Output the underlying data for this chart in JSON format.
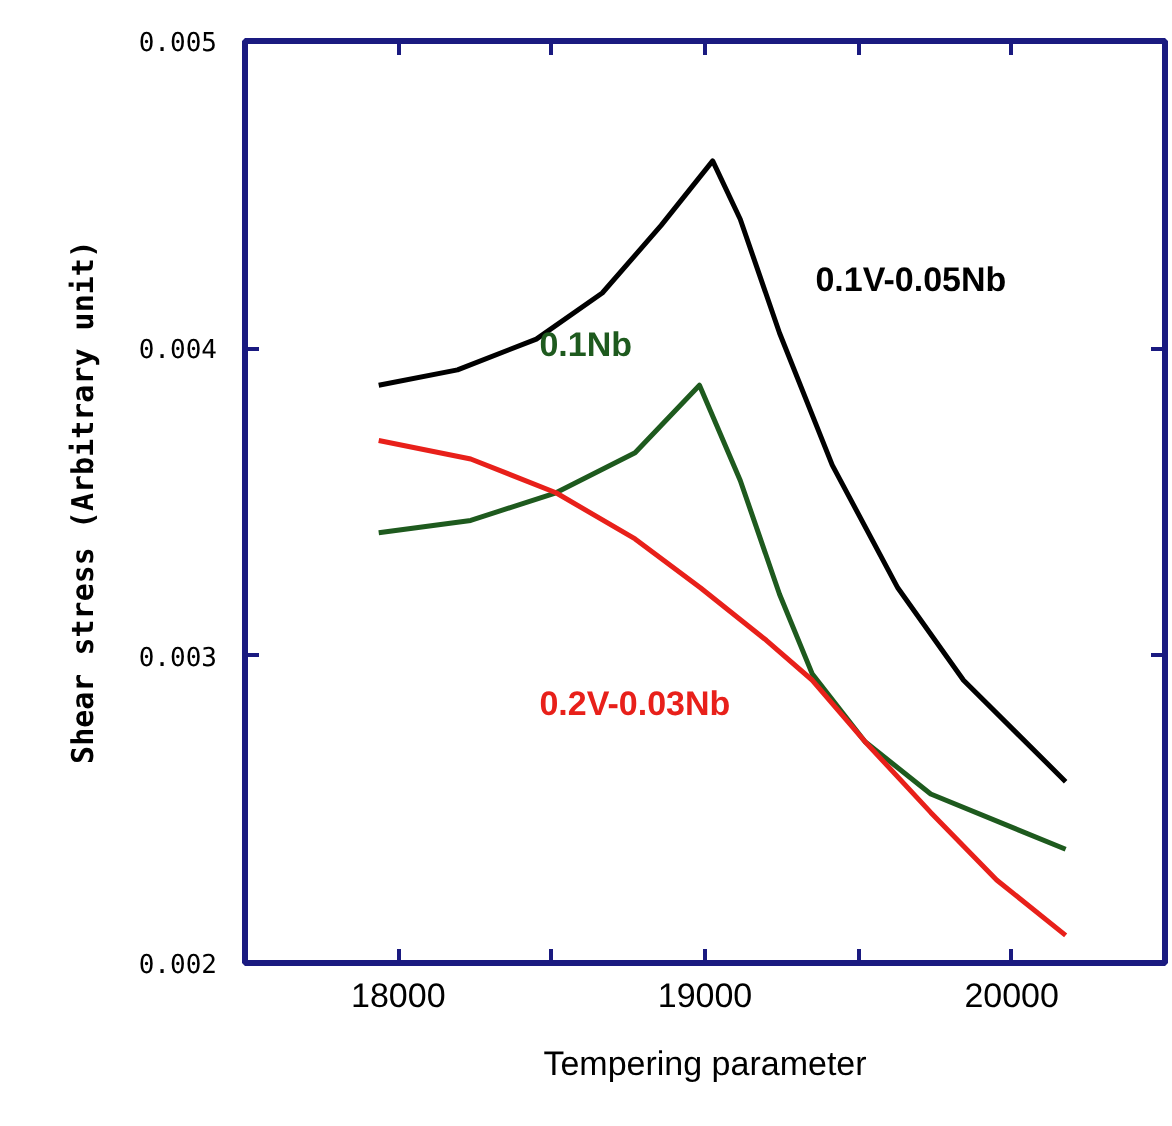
{
  "chart_data": {
    "type": "line",
    "xlabel": "Tempering parameter",
    "ylabel": "Shear stress (Arbitrary unit)",
    "xlim": [
      17500,
      20500
    ],
    "ylim": [
      0.002,
      0.005
    ],
    "xticks": [
      {
        "value": 17500,
        "label": null
      },
      18000,
      {
        "value": 18500,
        "label": null
      },
      19000,
      {
        "value": 19500,
        "label": null
      },
      20000
    ],
    "yticks": [
      0.002,
      0.003,
      0.004,
      0.005
    ],
    "grid": false,
    "legend": false,
    "marker": "none",
    "line_style": "solid",
    "series": [
      {
        "name": "0.1V-0.05Nb",
        "color": "#000000",
        "x": [
          17936,
          18193,
          18450,
          18665,
          18857,
          19025,
          19115,
          19243,
          19415,
          19629,
          19843,
          20176
        ],
        "values": [
          0.00388,
          0.00393,
          0.00403,
          0.00418,
          0.0044,
          0.00461,
          0.00442,
          0.00405,
          0.00362,
          0.00322,
          0.00292,
          0.00259
        ]
      },
      {
        "name": "0.1Nb",
        "color": "#1e5a1e",
        "x": [
          17936,
          18236,
          18514,
          18772,
          18982,
          19115,
          19243,
          19350,
          19522,
          19736,
          20176
        ],
        "values": [
          0.0034,
          0.00344,
          0.00353,
          0.00366,
          0.00388,
          0.00357,
          0.0032,
          0.00294,
          0.00272,
          0.00255,
          0.00237
        ]
      },
      {
        "name": "0.2V-0.03Nb",
        "color": "#e8201a",
        "x": [
          17936,
          18236,
          18514,
          18772,
          18986,
          19200,
          19350,
          19522,
          19736,
          19951,
          20176
        ],
        "values": [
          0.0037,
          0.00364,
          0.00353,
          0.00338,
          0.00322,
          0.00305,
          0.00292,
          0.00272,
          0.00249,
          0.00227,
          0.00209
        ]
      }
    ]
  }
}
